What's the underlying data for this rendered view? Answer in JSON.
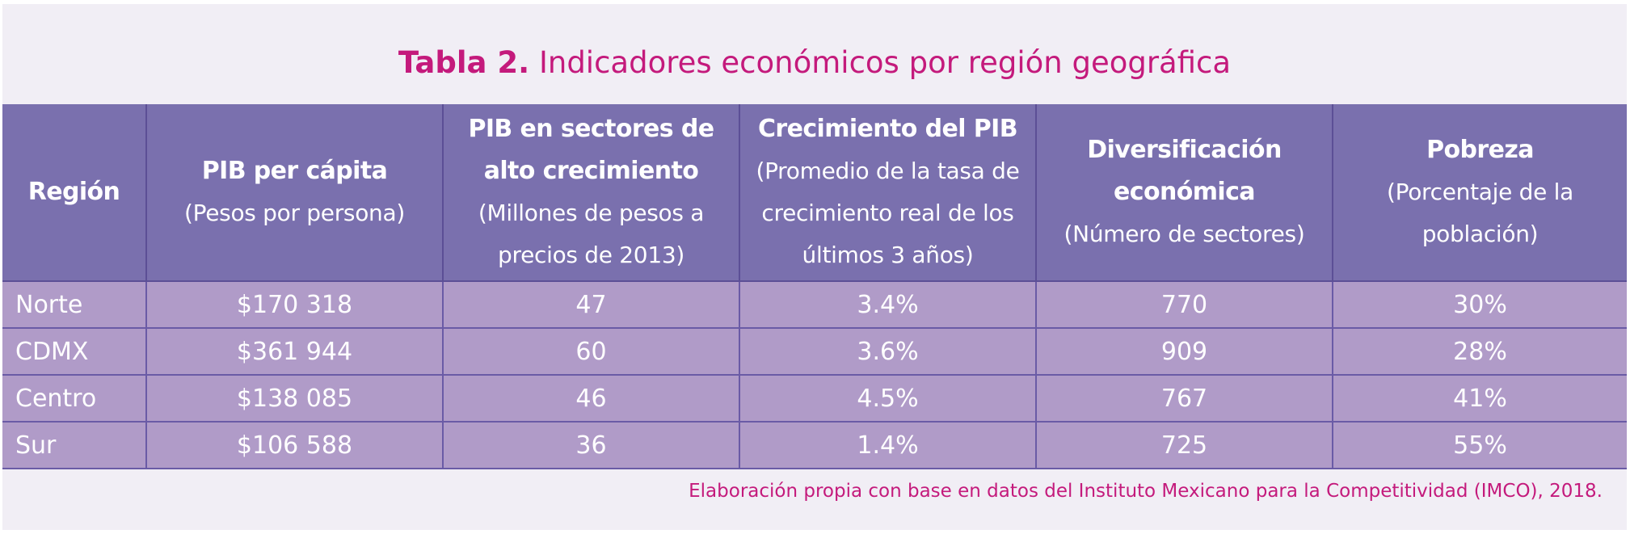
{
  "title": {
    "label": "Tabla 2.",
    "text": "Indicadores económicos por región geográfica"
  },
  "table": {
    "headers": [
      {
        "title": "Región",
        "subtitle": ""
      },
      {
        "title": "PIB per cápita",
        "subtitle": "(Pesos por persona)"
      },
      {
        "title": "PIB en sectores de alto crecimiento",
        "subtitle": "(Millones de pesos a precios de 2013)"
      },
      {
        "title": "Crecimiento del PIB",
        "subtitle": "(Promedio de la tasa de crecimiento real de los últimos 3 años)"
      },
      {
        "title": "Diversificación económica",
        "subtitle": "(Número de sectores)"
      },
      {
        "title": "Pobreza",
        "subtitle": "(Porcentaje de la población)"
      }
    ],
    "rows": [
      [
        "Norte",
        "$170 318",
        "47",
        "3.4%",
        "770",
        "30%"
      ],
      [
        "CDMX",
        "$361 944",
        "60",
        "3.6%",
        "909",
        "28%"
      ],
      [
        "Centro",
        "$138 085",
        "46",
        "4.5%",
        "767",
        "41%"
      ],
      [
        "Sur",
        "$106 588",
        "36",
        "1.4%",
        "725",
        "55%"
      ]
    ]
  },
  "source": "Elaboración propia con base en datos del Instituto Mexicano para la Competitividad (IMCO), 2018.",
  "colors": {
    "title": "#c41a7c",
    "header_bg": "#7a70ae",
    "row_bg": "#b09bc8",
    "panel_bg": "#f1eef5"
  }
}
